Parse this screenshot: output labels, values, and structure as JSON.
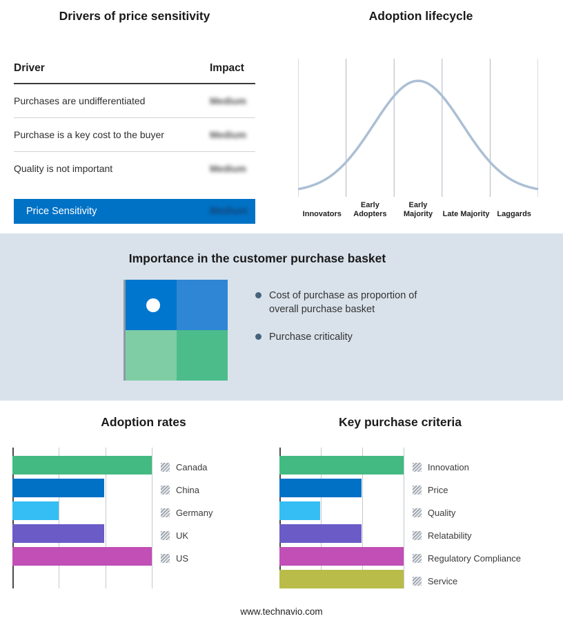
{
  "sections": {
    "drivers": {
      "title": "Drivers of price sensitivity",
      "columns": {
        "driver": "Driver",
        "impact": "Impact"
      },
      "rows": [
        {
          "driver": "Purchases are undifferentiated",
          "impact": "Medium",
          "impact_obscured": true
        },
        {
          "driver": "Purchase is a key cost to the buyer",
          "impact": "Medium",
          "impact_obscured": true
        },
        {
          "driver": "Quality is not important",
          "impact": "Medium",
          "impact_obscured": true
        }
      ],
      "highlight_row": {
        "driver": "Price Sensitivity",
        "impact": "Medium",
        "impact_obscured": true,
        "background": "#0072C6"
      }
    },
    "purchase_basket": {
      "title": "Importance in the customer purchase basket",
      "bullets": [
        "Cost of purchase as proportion of overall purchase basket",
        "Purchase criticality"
      ],
      "quadrant_colors": {
        "top_left": "#0076CE",
        "top_right": "#2E86D4",
        "bottom_left": "#7FCDA5",
        "bottom_right": "#4DBC8B"
      },
      "band_background": "#D9E2EB",
      "marker": "white-dot-top-left"
    },
    "footer": "www.technavio.com"
  },
  "chart_data": [
    {
      "id": "adoption_lifecycle",
      "type": "line",
      "title": "Adoption lifecycle",
      "categories": [
        "Innovators",
        "Early Adopters",
        "Early Majority",
        "Late Majority",
        "Laggards"
      ],
      "description": "Bell-shaped adoption curve rising from Innovators, peaking at Early Majority, falling to Laggards",
      "curve_shape": "gaussian",
      "peak_stage": "Early Majority",
      "curve_color": "#ABBFD4",
      "grid_color": "#AFB6BE",
      "grid": true,
      "legend_position": "none"
    },
    {
      "id": "adoption_rates",
      "type": "bar",
      "orientation": "horizontal",
      "title": "Adoption rates",
      "categories": [
        "Canada",
        "China",
        "Germany",
        "UK",
        "US"
      ],
      "values": [
        100,
        66,
        33,
        66,
        100
      ],
      "xlim": [
        0,
        100
      ],
      "gridlines": [
        0,
        33.33,
        66.67,
        100
      ],
      "colors": [
        "#43BA81",
        "#0071C5",
        "#35BEF3",
        "#6A5BC7",
        "#C14FB6"
      ],
      "legend_position": "right",
      "xlabel": "",
      "ylabel": ""
    },
    {
      "id": "key_purchase_criteria",
      "type": "bar",
      "orientation": "horizontal",
      "title": "Key purchase criteria",
      "categories": [
        "Innovation",
        "Price",
        "Quality",
        "Relatability",
        "Regulatory Compliance",
        "Service"
      ],
      "values": [
        100,
        66,
        33,
        66,
        100,
        100
      ],
      "xlim": [
        0,
        100
      ],
      "gridlines": [
        0,
        33.33,
        66.67,
        100
      ],
      "colors": [
        "#43BA81",
        "#0071C5",
        "#35BEF3",
        "#6A5BC7",
        "#C14FB6",
        "#B9BC49"
      ],
      "legend_position": "right",
      "xlabel": "",
      "ylabel": ""
    }
  ]
}
